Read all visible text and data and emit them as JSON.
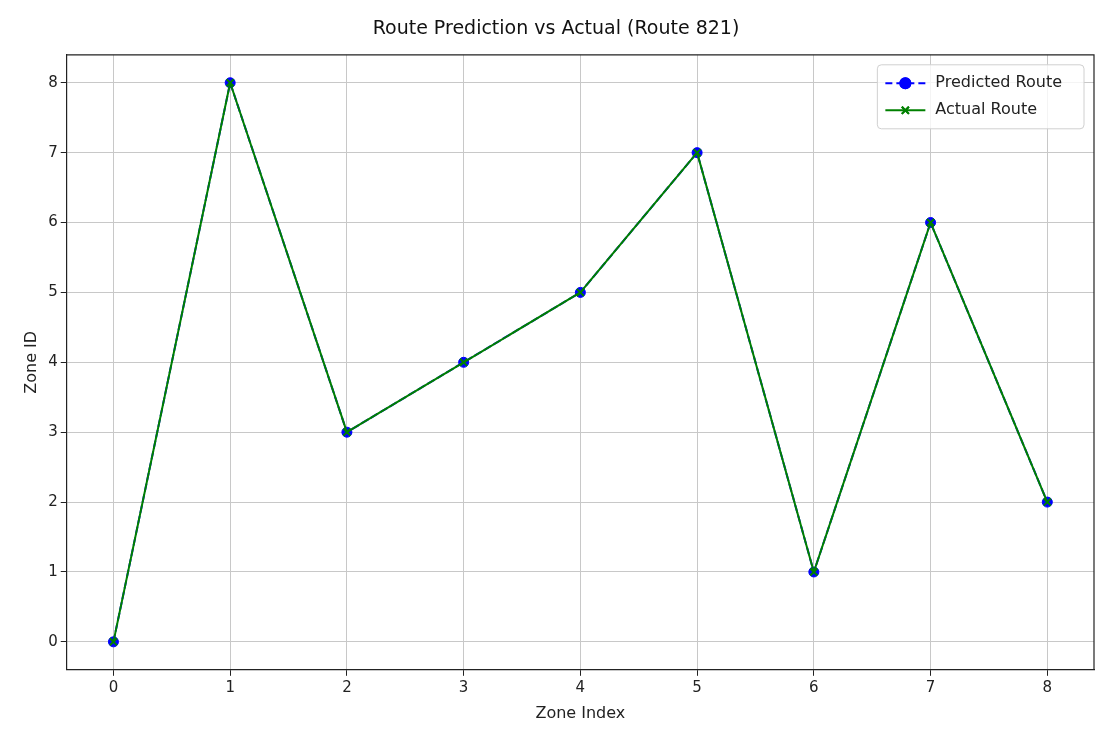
{
  "chart_data": {
    "type": "line",
    "title": "Route Prediction vs Actual (Route 821)",
    "xlabel": "Zone Index",
    "ylabel": "Zone ID",
    "x": [
      0,
      1,
      2,
      3,
      4,
      5,
      6,
      7,
      8
    ],
    "series": [
      {
        "name": "Predicted Route",
        "color": "#0000ff",
        "marker": "circle",
        "line_style": "dashed",
        "values": [
          0,
          8,
          3,
          4,
          5,
          7,
          1,
          6,
          2
        ]
      },
      {
        "name": "Actual Route",
        "color": "#008000",
        "marker": "cross",
        "line_style": "solid",
        "values": [
          0,
          8,
          3,
          4,
          5,
          7,
          1,
          6,
          2
        ]
      }
    ],
    "xlim": [
      -0.4,
      8.4
    ],
    "xticks": [
      0,
      1,
      2,
      3,
      4,
      5,
      6,
      7,
      8
    ],
    "ylim": [
      -0.4,
      8.4
    ],
    "yticks": [
      0,
      1,
      2,
      3,
      4,
      5,
      6,
      7,
      8
    ],
    "grid": true,
    "legend": "top right"
  }
}
